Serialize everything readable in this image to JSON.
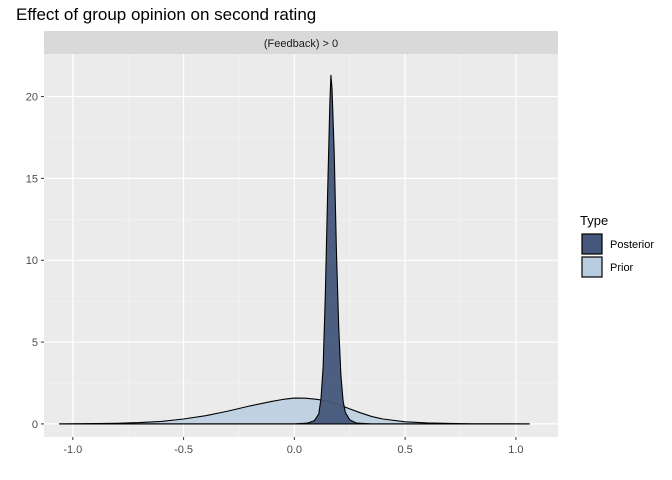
{
  "chart_data": {
    "type": "area",
    "title": "Effect of group opinion on second rating",
    "facet_label": "(Feedback) > 0",
    "xlabel": "",
    "ylabel": "",
    "xlim": [
      -1.13,
      1.19
    ],
    "ylim": [
      -0.8,
      22.6
    ],
    "x_ticks": [
      -1.0,
      -0.5,
      0.0,
      0.5,
      1.0
    ],
    "x_tick_labels": [
      "-1.0",
      "-0.5",
      "0.0",
      "0.5",
      "1.0"
    ],
    "y_ticks": [
      0,
      5,
      10,
      15,
      20
    ],
    "y_tick_labels": [
      "0",
      "5",
      "10",
      "15",
      "20"
    ],
    "grid": true,
    "legend": {
      "title": "Type",
      "position": "right"
    },
    "series": [
      {
        "name": "Prior",
        "color": "#b9cde0",
        "x": [
          -1.06,
          -0.9,
          -0.8,
          -0.7,
          -0.6,
          -0.5,
          -0.4,
          -0.3,
          -0.2,
          -0.1,
          -0.05,
          0.0,
          0.05,
          0.1,
          0.15,
          0.2,
          0.25,
          0.3,
          0.35,
          0.4,
          0.5,
          0.6,
          0.7,
          0.8,
          1.06
        ],
        "values": [
          0.0,
          0.02,
          0.04,
          0.08,
          0.15,
          0.3,
          0.5,
          0.78,
          1.1,
          1.38,
          1.5,
          1.58,
          1.57,
          1.5,
          1.4,
          1.18,
          0.92,
          0.67,
          0.45,
          0.3,
          0.13,
          0.06,
          0.03,
          0.01,
          0.0
        ]
      },
      {
        "name": "Posterior",
        "color": "#45577a",
        "x": [
          -1.06,
          0.0,
          0.06,
          0.09,
          0.11,
          0.12,
          0.13,
          0.14,
          0.15,
          0.16,
          0.165,
          0.17,
          0.18,
          0.19,
          0.2,
          0.21,
          0.22,
          0.23,
          0.25,
          0.28,
          0.35,
          1.06
        ],
        "values": [
          0.0,
          0.0,
          0.05,
          0.2,
          0.6,
          1.5,
          3.5,
          8.0,
          14.0,
          19.5,
          21.3,
          20.5,
          16.5,
          10.5,
          6.0,
          3.0,
          1.4,
          0.7,
          0.25,
          0.05,
          0.0,
          0.0
        ]
      }
    ]
  }
}
